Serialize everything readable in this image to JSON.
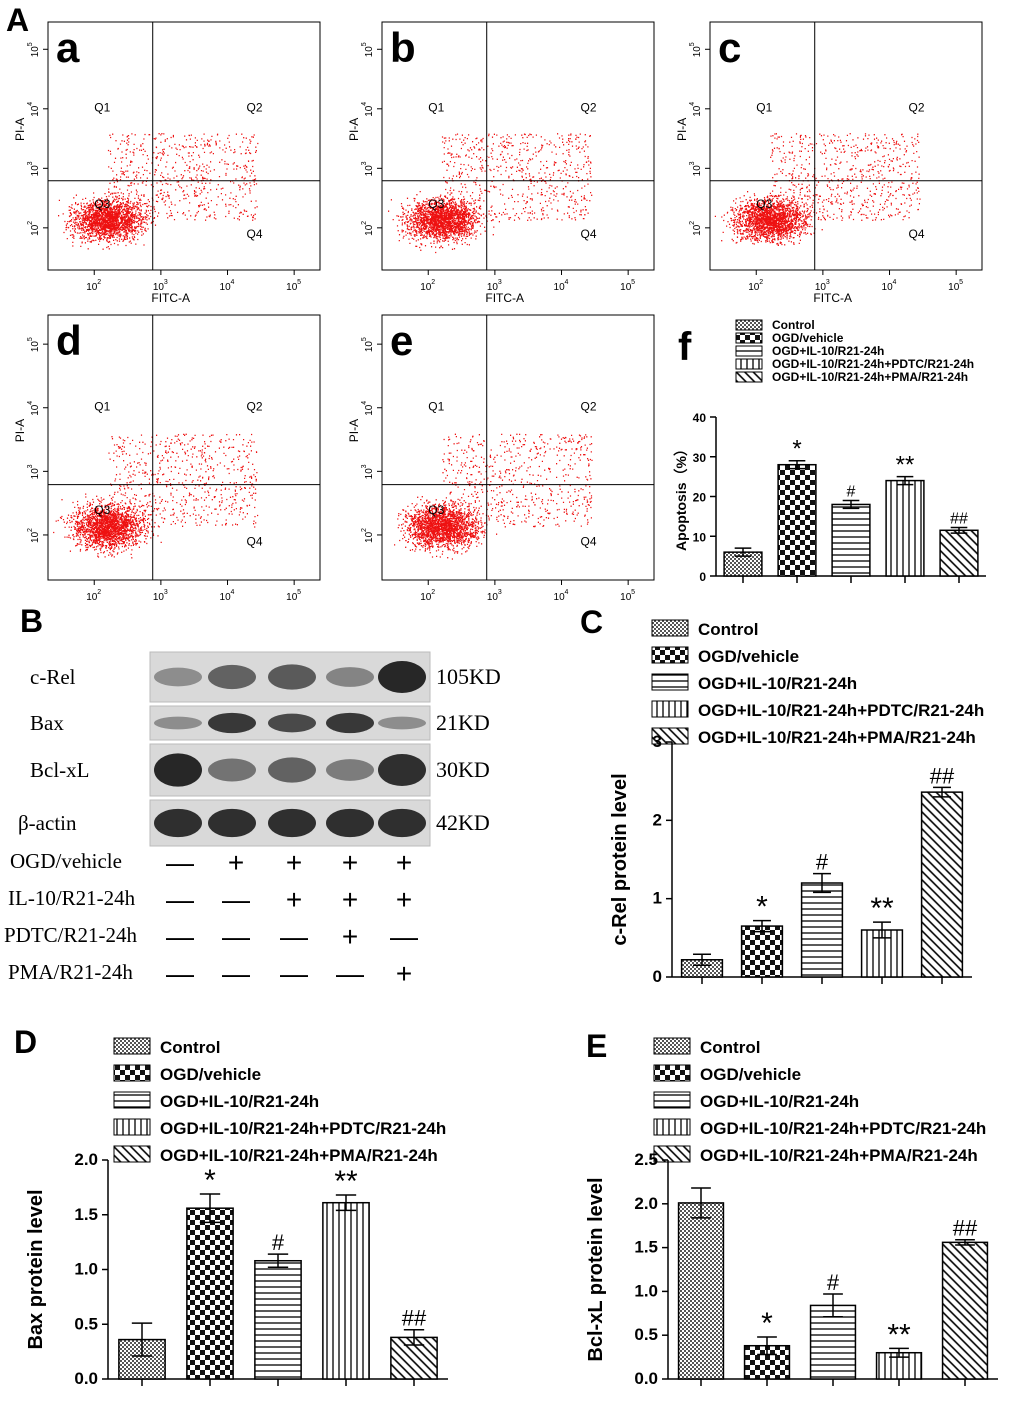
{
  "figure_label_A": "A",
  "figure_label_B": "B",
  "figure_label_C": "C",
  "figure_label_D": "D",
  "figure_label_E": "E",
  "flow_panels": [
    {
      "letter": "a"
    },
    {
      "letter": "b"
    },
    {
      "letter": "c"
    },
    {
      "letter": "d"
    },
    {
      "letter": "e"
    }
  ],
  "flow_common": {
    "xlabel": "FITC-A",
    "ylabel": "PI-A",
    "quadrants": [
      "Q1",
      "Q2",
      "Q3",
      "Q4"
    ],
    "x_ticks": [
      "10",
      "10",
      "10",
      "10"
    ],
    "x_exps": [
      "2",
      "3",
      "4",
      "5"
    ],
    "y_ticks": [
      "10",
      "10",
      "10",
      "10"
    ],
    "y_exps": [
      "2",
      "3",
      "4",
      "5"
    ],
    "dot_color": "#ee1111"
  },
  "legend_items": [
    "Control",
    "OGD/vehicle",
    "OGD+IL-10/R21-24h",
    "OGD+IL-10/R21-24h+PDTC/R21-24h",
    "OGD+IL-10/R21-24h+PMA/R21-24h"
  ],
  "western": {
    "bands": [
      {
        "label": "c-Rel",
        "size": "105KD"
      },
      {
        "label": "Bax",
        "size": "21KD"
      },
      {
        "label": "Bcl-xL",
        "size": "30KD"
      },
      {
        "label": "β-actin",
        "size": "42KD"
      }
    ],
    "treatments": [
      {
        "label": "OGD/vehicle",
        "signs": [
          "—",
          "+",
          "+",
          "+",
          "+"
        ]
      },
      {
        "label": "IL-10/R21-24h",
        "signs": [
          "—",
          "—",
          "+",
          "+",
          "+"
        ]
      },
      {
        "label": "PDTC/R21-24h",
        "signs": [
          "—",
          "—",
          "—",
          "+",
          "—"
        ]
      },
      {
        "label": "PMA/R21-24h",
        "signs": [
          "—",
          "—",
          "—",
          "—",
          "+"
        ]
      }
    ]
  },
  "chart_data": [
    {
      "id": "f",
      "type": "bar",
      "panel_letter": "f",
      "categories": [
        "Control",
        "OGD/vehicle",
        "OGD+IL-10/R21-24h",
        "OGD+IL-10/R21-24h+PDTC/R21-24h",
        "OGD+IL-10/R21-24h+PMA/R21-24h"
      ],
      "values": [
        6,
        28,
        18,
        24,
        11.5
      ],
      "errors": [
        1,
        1,
        1,
        1,
        0.7
      ],
      "annotations": [
        "",
        "*",
        "#",
        "**",
        "##"
      ],
      "ylabel": "Apoptosis（%）",
      "ylim": [
        0,
        40
      ],
      "yticks": [
        0,
        10,
        20,
        30,
        40
      ],
      "ytick_labels": [
        "0",
        "10",
        "20",
        "30",
        "40"
      ]
    },
    {
      "id": "C",
      "type": "bar",
      "categories": [
        "Control",
        "OGD/vehicle",
        "OGD+IL-10/R21-24h",
        "OGD+IL-10/R21-24h+PDTC/R21-24h",
        "OGD+IL-10/R21-24h+PMA/R21-24h"
      ],
      "values": [
        0.22,
        0.65,
        1.2,
        0.6,
        2.36
      ],
      "errors": [
        0.07,
        0.07,
        0.12,
        0.1,
        0.06
      ],
      "annotations": [
        "",
        "*",
        "#",
        "**",
        "##"
      ],
      "ylabel": "c-Rel protein level",
      "ylim": [
        0,
        3
      ],
      "yticks": [
        0,
        1,
        2,
        3
      ],
      "ytick_labels": [
        "0",
        "1",
        "2",
        "3"
      ]
    },
    {
      "id": "D",
      "type": "bar",
      "categories": [
        "Control",
        "OGD/vehicle",
        "OGD+IL-10/R21-24h",
        "OGD+IL-10/R21-24h+PDTC/R21-24h",
        "OGD+IL-10/R21-24h+PMA/R21-24h"
      ],
      "values": [
        0.36,
        1.56,
        1.08,
        1.61,
        0.38
      ],
      "errors": [
        0.15,
        0.13,
        0.06,
        0.07,
        0.07
      ],
      "annotations": [
        "",
        "*",
        "#",
        "**",
        "##"
      ],
      "ylabel": "Bax protein level",
      "ylim": [
        0,
        2
      ],
      "yticks": [
        0,
        0.5,
        1,
        1.5,
        2
      ],
      "ytick_labels": [
        "0.0",
        "0.5",
        "1.0",
        "1.5",
        "2.0"
      ]
    },
    {
      "id": "E",
      "type": "bar",
      "categories": [
        "Control",
        "OGD/vehicle",
        "OGD+IL-10/R21-24h",
        "OGD+IL-10/R21-24h+PDTC/R21-24h",
        "OGD+IL-10/R21-24h+PMA/R21-24h"
      ],
      "values": [
        2.01,
        0.38,
        0.84,
        0.3,
        1.56
      ],
      "errors": [
        0.17,
        0.1,
        0.13,
        0.05,
        0.03
      ],
      "annotations": [
        "",
        "*",
        "#",
        "**",
        "##"
      ],
      "ylabel": "Bcl-xL protein level",
      "ylim": [
        0,
        2.5
      ],
      "yticks": [
        0,
        0.5,
        1,
        1.5,
        2,
        2.5
      ],
      "ytick_labels": [
        "0.0",
        "0.5",
        "1.0",
        "1.5",
        "2.0",
        "2.5"
      ]
    }
  ]
}
